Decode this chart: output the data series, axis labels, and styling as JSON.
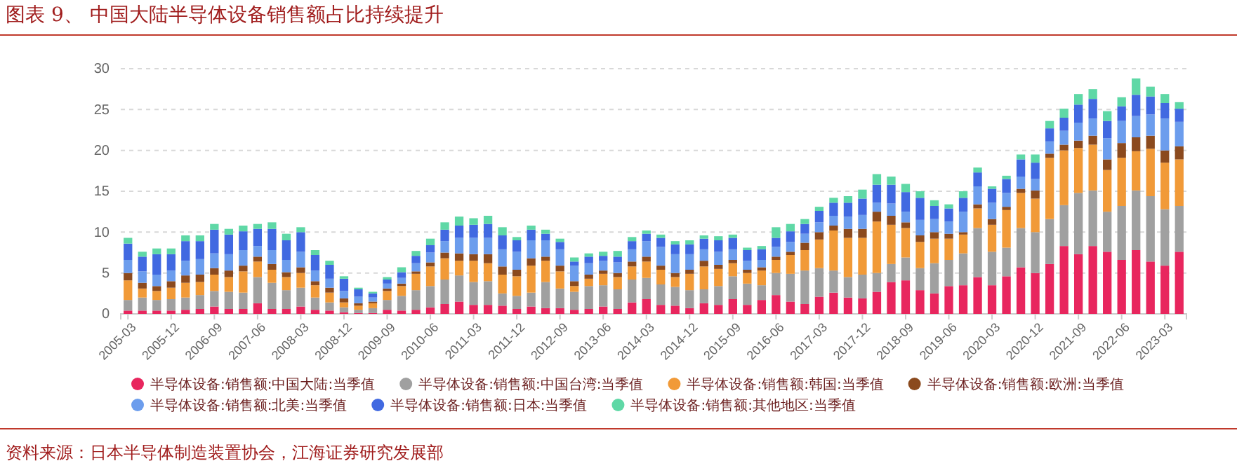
{
  "chart_data": {
    "type": "bar",
    "stacked": true,
    "title": "图表 9、 中国大陆半导体设备销售额占比持续提升",
    "annotations": [
      "资料来源：日本半导体制造装置协会，江海证券研究发展部"
    ],
    "categories": [
      "2005-03",
      null,
      null,
      "2005-12",
      null,
      null,
      "2006-09",
      null,
      null,
      "2007-06",
      null,
      null,
      "2008-03",
      null,
      null,
      "2008-12",
      null,
      null,
      "2009-09",
      null,
      null,
      "2010-06",
      null,
      null,
      "2011-03",
      null,
      null,
      "2011-12",
      null,
      null,
      "2012-09",
      null,
      null,
      "2013-06",
      null,
      null,
      "2014-03",
      null,
      null,
      "2014-12",
      null,
      null,
      "2015-09",
      null,
      null,
      "2016-06",
      null,
      null,
      "2017-03",
      null,
      null,
      "2017-12",
      null,
      null,
      "2018-09",
      null,
      null,
      "2019-06",
      null,
      null,
      "2020-03",
      null,
      null,
      "2020-12",
      null,
      null,
      "2021-09",
      null,
      null,
      "2022-06",
      null,
      null,
      "2023-03",
      null
    ],
    "ylim": [
      0,
      30
    ],
    "yticks": [
      0,
      5,
      10,
      15,
      20,
      25,
      30
    ],
    "grid": "y",
    "legend": "bottom",
    "series": [
      {
        "name": "半导体设备:销售额:中国大陆:当季值",
        "color": "#e8265e",
        "values": [
          0.4,
          0.4,
          0.4,
          0.4,
          0.5,
          0.6,
          0.9,
          0.6,
          0.6,
          1.3,
          0.6,
          0.6,
          0.9,
          0.5,
          0.4,
          0.2,
          0.1,
          0.1,
          0.5,
          0.4,
          0.5,
          0.8,
          1.2,
          1.5,
          1.1,
          1.1,
          1.0,
          0.6,
          0.9,
          0.7,
          0.7,
          0.5,
          0.6,
          0.9,
          0.6,
          1.4,
          1.8,
          1.1,
          1.0,
          0.7,
          1.3,
          1.1,
          1.8,
          1.1,
          1.7,
          2.3,
          1.5,
          1.2,
          2.1,
          2.6,
          2.0,
          1.9,
          2.7,
          3.9,
          4.1,
          2.9,
          2.5,
          3.4,
          3.5,
          4.5,
          3.5,
          4.6,
          5.7,
          5.0,
          6.1,
          8.3,
          7.3,
          8.3,
          7.6,
          6.6,
          7.8,
          6.4,
          5.9,
          7.6
        ]
      },
      {
        "name": "半导体设备:销售额:中国台湾:当季值",
        "color": "#a0a0a0",
        "values": [
          1.3,
          1.6,
          1.3,
          1.4,
          1.5,
          1.7,
          1.9,
          2.1,
          2.0,
          3.2,
          3.2,
          2.3,
          2.3,
          1.5,
          1.0,
          0.6,
          0.4,
          0.6,
          1.2,
          1.8,
          2.4,
          2.6,
          3.0,
          3.2,
          2.8,
          2.9,
          1.5,
          1.6,
          1.7,
          3.2,
          2.4,
          2.2,
          2.8,
          2.6,
          2.4,
          2.8,
          2.6,
          2.5,
          2.3,
          2.2,
          1.7,
          2.3,
          2.8,
          2.6,
          1.8,
          2.7,
          3.4,
          4.1,
          3.5,
          2.7,
          2.5,
          2.9,
          2.3,
          2.2,
          2.8,
          2.7,
          3.7,
          3.2,
          3.9,
          6.0,
          4.1,
          3.5,
          4.8,
          5.0,
          5.5,
          5.0,
          7.5,
          6.8,
          4.9,
          6.6,
          7.3,
          8.0,
          6.9,
          5.6
        ]
      },
      {
        "name": "半导体设备:销售额:韩国:当季值",
        "color": "#f19a38",
        "values": [
          2.4,
          1.1,
          1.1,
          1.4,
          1.8,
          1.6,
          2.0,
          1.8,
          2.6,
          1.9,
          1.6,
          1.6,
          1.8,
          1.5,
          1.2,
          0.6,
          0.5,
          0.6,
          1.1,
          1.2,
          2.0,
          2.4,
          2.6,
          1.8,
          2.6,
          2.2,
          2.3,
          2.4,
          3.3,
          2.6,
          2.1,
          0.7,
          0.9,
          1.4,
          1.5,
          1.6,
          2.0,
          1.8,
          1.2,
          2.0,
          2.8,
          2.1,
          1.6,
          1.3,
          1.8,
          1.6,
          2.3,
          2.5,
          3.5,
          4.9,
          4.8,
          4.5,
          6.3,
          4.8,
          3.6,
          3.2,
          3.0,
          2.6,
          2.3,
          2.4,
          3.3,
          4.6,
          4.3,
          4.1,
          7.5,
          6.7,
          5.5,
          5.6,
          5.1,
          5.9,
          4.8,
          5.8,
          5.7,
          5.7
        ]
      },
      {
        "name": "半导体设备:销售额:欧洲:当季值",
        "color": "#8b4a1e",
        "values": [
          0.9,
          0.7,
          0.6,
          0.8,
          0.9,
          0.9,
          0.8,
          0.8,
          0.7,
          0.6,
          0.7,
          0.6,
          0.7,
          0.5,
          0.6,
          0.5,
          0.3,
          0.2,
          0.3,
          0.3,
          0.3,
          0.5,
          0.7,
          0.9,
          0.8,
          1.1,
          1.0,
          0.8,
          0.9,
          0.5,
          0.7,
          0.6,
          0.5,
          0.4,
          0.5,
          0.6,
          0.6,
          0.5,
          0.5,
          0.5,
          0.7,
          0.5,
          0.4,
          0.4,
          0.4,
          0.4,
          0.4,
          0.9,
          0.9,
          0.6,
          1.1,
          1.1,
          1.2,
          1.1,
          0.7,
          0.8,
          0.8,
          0.6,
          0.3,
          0.5,
          0.7,
          0.4,
          0.5,
          1.0,
          0.5,
          0.7,
          0.9,
          1.1,
          1.3,
          1.8,
          1.7,
          1.6,
          1.5,
          1.6
        ]
      },
      {
        "name": "半导体设备:销售额:北美:当季值",
        "color": "#6c9ded",
        "values": [
          1.6,
          1.4,
          1.4,
          1.3,
          1.8,
          1.9,
          1.8,
          2.0,
          1.9,
          1.3,
          1.7,
          1.5,
          1.9,
          1.3,
          1.1,
          0.9,
          0.8,
          0.5,
          0.6,
          0.7,
          1.0,
          1.2,
          1.4,
          1.9,
          2.0,
          2.0,
          2.1,
          2.2,
          2.2,
          2.0,
          2.0,
          1.9,
          1.4,
          1.2,
          1.3,
          1.5,
          1.9,
          2.3,
          2.3,
          1.9,
          1.4,
          1.6,
          1.3,
          1.1,
          0.9,
          1.2,
          1.2,
          1.1,
          1.2,
          1.2,
          1.5,
          1.7,
          1.1,
          1.5,
          1.3,
          1.9,
          1.6,
          1.5,
          2.5,
          2.2,
          2.0,
          1.7,
          1.5,
          1.4,
          1.5,
          1.7,
          2.2,
          2.1,
          2.6,
          2.7,
          2.6,
          2.6,
          3.9,
          3.0
        ]
      },
      {
        "name": "半导体设备:销售额:日本:当季值",
        "color": "#4169e1",
        "values": [
          2.0,
          1.8,
          2.5,
          2.0,
          2.4,
          2.2,
          2.9,
          2.4,
          2.3,
          2.1,
          2.6,
          2.4,
          2.4,
          1.9,
          1.7,
          1.5,
          0.9,
          0.5,
          0.5,
          0.7,
          0.9,
          0.9,
          1.4,
          1.5,
          1.6,
          1.7,
          1.7,
          1.4,
          1.3,
          0.8,
          0.9,
          0.5,
          0.8,
          0.6,
          0.7,
          1.0,
          0.9,
          1.1,
          1.2,
          1.2,
          1.3,
          1.4,
          1.4,
          1.3,
          1.3,
          1.1,
          1.3,
          1.2,
          1.4,
          1.6,
          1.7,
          2.0,
          2.2,
          2.3,
          2.4,
          2.7,
          1.6,
          1.6,
          1.7,
          1.7,
          1.7,
          1.7,
          2.1,
          2.0,
          1.6,
          1.6,
          2.2,
          2.4,
          2.1,
          1.8,
          2.6,
          2.2,
          1.9,
          1.6
        ]
      },
      {
        "name": "半导体设备:销售额:其他地区:当季值",
        "color": "#5fd8a6",
        "values": [
          0.7,
          0.6,
          0.7,
          0.7,
          0.7,
          0.7,
          0.7,
          0.7,
          0.7,
          0.6,
          0.8,
          0.8,
          0.6,
          0.6,
          0.5,
          0.3,
          0.2,
          0.2,
          0.3,
          0.6,
          0.6,
          0.8,
          0.9,
          1.1,
          0.8,
          1.0,
          1.0,
          0.4,
          0.5,
          0.5,
          0.4,
          0.5,
          0.4,
          0.5,
          0.7,
          0.5,
          0.4,
          0.4,
          0.4,
          0.5,
          0.4,
          0.5,
          0.4,
          0.3,
          0.4,
          1.3,
          0.9,
          0.6,
          0.5,
          0.6,
          0.8,
          1.1,
          1.3,
          1.0,
          1.0,
          0.8,
          0.7,
          0.5,
          0.8,
          0.6,
          0.3,
          0.4,
          0.6,
          1.0,
          0.9,
          1.1,
          1.3,
          1.2,
          1.2,
          1.1,
          2.0,
          1.2,
          1.1,
          0.8
        ]
      }
    ]
  }
}
